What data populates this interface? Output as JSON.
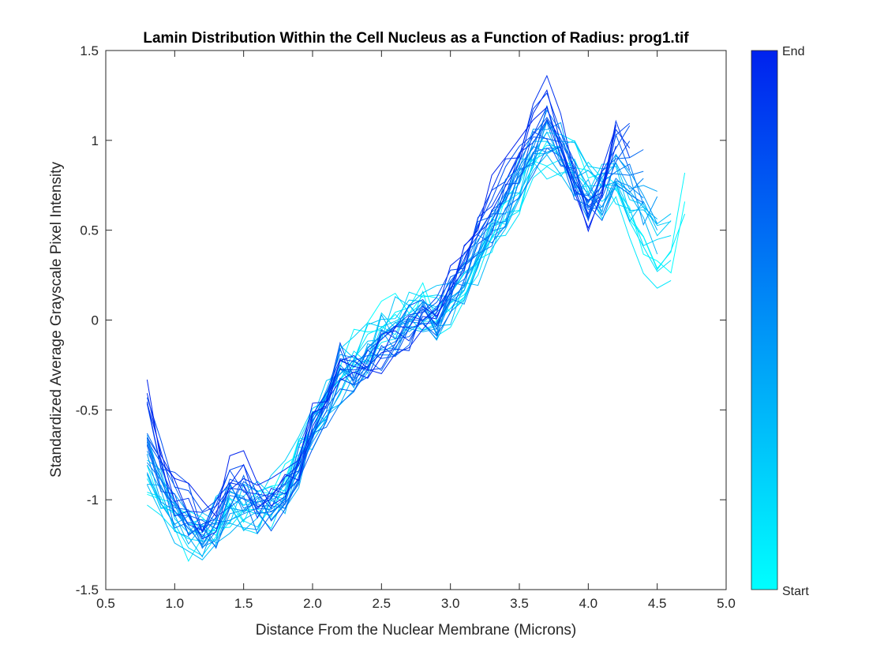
{
  "chart_data": {
    "type": "line",
    "title": "Lamin Distribution Within the Cell Nucleus as a Function of Radius: prog1.tif",
    "xlabel": "Distance From the Nuclear Membrane (Microns)",
    "ylabel": "Standardized Average Grayscale Pixel Intensity",
    "xlim": [
      0.5,
      5.0
    ],
    "ylim": [
      -1.5,
      1.5
    ],
    "xticks": [
      "0.5",
      "1.0",
      "1.5",
      "2.0",
      "2.5",
      "3.0",
      "3.5",
      "4.0",
      "4.5",
      "5.0"
    ],
    "yticks": [
      "-1.5",
      "-1",
      "-0.5",
      "0",
      "0.5",
      "1",
      "1.5"
    ],
    "grid": false,
    "colorbar": {
      "start_label": "Start",
      "end_label": "End",
      "start_color": "#00ffff",
      "end_color": "#0022ee"
    },
    "series_count": 30,
    "x": [
      0.8,
      0.9,
      1.0,
      1.1,
      1.2,
      1.3,
      1.4,
      1.5,
      1.6,
      1.7,
      1.8,
      1.9,
      2.0,
      2.1,
      2.2,
      2.3,
      2.4,
      2.5,
      2.6,
      2.7,
      2.8,
      2.9,
      3.0,
      3.1,
      3.2,
      3.3,
      3.4,
      3.5,
      3.6,
      3.7,
      3.8,
      3.9,
      4.0,
      4.1,
      4.2,
      4.3,
      4.4,
      4.5,
      4.6,
      4.7
    ],
    "series_profiles": {
      "late": [
        -0.48,
        -0.75,
        -0.95,
        -1.05,
        -1.15,
        -1.1,
        -0.9,
        -0.85,
        -1.0,
        -1.05,
        -0.95,
        -0.8,
        -0.62,
        -0.45,
        -0.3,
        -0.35,
        -0.3,
        -0.22,
        -0.18,
        -0.1,
        -0.05,
        0.0,
        0.2,
        0.35,
        0.5,
        0.65,
        0.75,
        0.9,
        1.05,
        1.22,
        1.0,
        0.75,
        0.55,
        0.72,
        1.05
      ],
      "early": [
        -0.95,
        -1.05,
        -1.15,
        -1.2,
        -1.2,
        -1.15,
        -1.1,
        -1.1,
        -1.05,
        -1.0,
        -0.9,
        -0.75,
        -0.6,
        -0.45,
        -0.3,
        -0.2,
        -0.1,
        0.0,
        0.05,
        0.1,
        0.12,
        0.05,
        0.05,
        0.15,
        0.3,
        0.45,
        0.55,
        0.7,
        0.85,
        0.9,
        0.95,
        0.9,
        0.85,
        0.75,
        0.7,
        0.5,
        0.35,
        0.25,
        0.3,
        0.65
      ]
    }
  }
}
